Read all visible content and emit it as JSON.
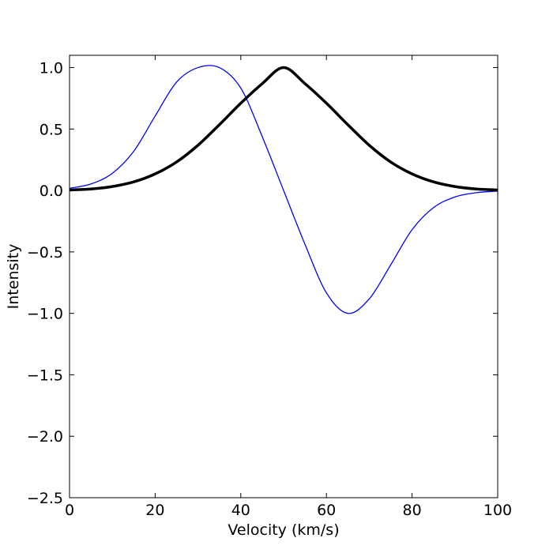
{
  "chart_data": {
    "type": "line",
    "title": "",
    "xlabel": "Velocity (km/s)",
    "ylabel": "Intensity",
    "xlim": [
      0,
      100
    ],
    "ylim": [
      -2.5,
      1.1
    ],
    "xticks": [
      0,
      20,
      40,
      60,
      80,
      100
    ],
    "xtick_labels": [
      "0",
      "20",
      "40",
      "60",
      "80",
      "100"
    ],
    "yticks": [
      -2.5,
      -2.0,
      -1.5,
      -1.0,
      -0.5,
      0.0,
      0.5,
      1.0
    ],
    "ytick_labels": [
      "−2.5",
      "−2.0",
      "−1.5",
      "−1.0",
      "−0.5",
      "0.0",
      "0.5",
      "1.0"
    ],
    "grid": false,
    "legend": "none",
    "series": [
      {
        "color": "#000000",
        "line_style": "thick",
        "x": [
          0,
          5,
          10,
          15,
          20,
          25,
          30,
          35,
          40,
          45,
          50,
          55,
          60,
          65,
          70,
          75,
          80,
          85,
          90,
          95,
          100
        ],
        "y": [
          0.004,
          0.012,
          0.032,
          0.07,
          0.135,
          0.232,
          0.368,
          0.535,
          0.71,
          0.869,
          1.0,
          0.869,
          0.71,
          0.535,
          0.368,
          0.232,
          0.135,
          0.07,
          0.032,
          0.012,
          0.004
        ]
      },
      {
        "color": "#0000ff",
        "line_style": "thin",
        "x": [
          0,
          5,
          10,
          15,
          20,
          25,
          30,
          35,
          40,
          45,
          50,
          55,
          60,
          65,
          70,
          75,
          80,
          85,
          90,
          95,
          100
        ],
        "y": [
          0.018,
          0.053,
          0.14,
          0.319,
          0.606,
          0.882,
          1.0,
          1.0,
          0.833,
          0.439,
          0.0,
          -0.439,
          -0.833,
          -1.0,
          -0.882,
          -0.606,
          -0.319,
          -0.14,
          -0.053,
          -0.018,
          -0.005
        ]
      }
    ]
  }
}
